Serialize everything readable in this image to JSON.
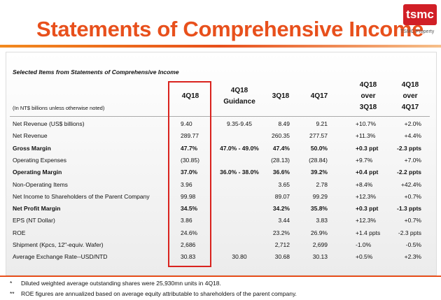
{
  "header": {
    "title": "Statements of Comprehensive Income",
    "logo": "tsmc",
    "logo_caption": "TSMC Property"
  },
  "table": {
    "caption": "Selected Items from Statements of Comprehensive Income",
    "note": "(In NT$ billions unless otherwise noted)",
    "columns": [
      [
        "4Q18"
      ],
      [
        "4Q18",
        "Guidance"
      ],
      [
        "3Q18"
      ],
      [
        "4Q17"
      ],
      [
        "4Q18",
        "over",
        "3Q18"
      ],
      [
        "4Q18",
        "over",
        "4Q17"
      ]
    ],
    "rows": [
      {
        "label": "Net Revenue (US$ billions)",
        "cells": [
          "9.40",
          "9.35-9.45",
          "8.49",
          "9.21",
          "+10.7%",
          "+2.0%"
        ]
      },
      {
        "label": "Net Revenue",
        "cells": [
          "289.77",
          null,
          "260.35",
          "277.57",
          "+11.3%",
          "+4.4%"
        ]
      },
      {
        "label": "Gross Margin",
        "bold": true,
        "cells": [
          "47.7%",
          "47.0% - 49.0%",
          "47.4%",
          "50.0%",
          "+0.3 ppt",
          "-2.3 ppts"
        ]
      },
      {
        "label": "Operating Expenses",
        "cells": [
          "(30.85)",
          null,
          "(28.13)",
          "(28.84)",
          "+9.7%",
          "+7.0%"
        ]
      },
      {
        "label": "Operating Margin",
        "bold": true,
        "cells": [
          "37.0%",
          "36.0% - 38.0%",
          "36.6%",
          "39.2%",
          "+0.4 ppt",
          "-2.2 ppts"
        ]
      },
      {
        "label": "Non-Operating Items",
        "cells": [
          "3.96",
          null,
          "3.65",
          "2.78",
          "+8.4%",
          "+42.4%"
        ]
      },
      {
        "label": "Net Income to Shareholders of the Parent Company",
        "cells": [
          "99.98",
          null,
          "89.07",
          "99.29",
          "+12.3%",
          "+0.7%"
        ]
      },
      {
        "label": "Net Profit Margin",
        "bold": true,
        "cells": [
          "34.5%",
          null,
          "34.2%",
          "35.8%",
          "+0.3 ppt",
          "-1.3 ppts"
        ]
      },
      {
        "label": "EPS (NT Dollar)",
        "cells": [
          "3.86",
          null,
          "3.44",
          "3.83",
          "+12.3%",
          "+0.7%"
        ]
      },
      {
        "label": "ROE",
        "cells": [
          "24.6%",
          null,
          "23.2%",
          "26.9%",
          "+1.4 ppts",
          "-2.3 ppts"
        ]
      },
      {
        "label": "Shipment (Kpcs, 12\"-equiv. Wafer)",
        "cells": [
          "2,686",
          null,
          "2,712",
          "2,699",
          "-1.0%",
          "-0.5%"
        ]
      },
      {
        "label": "Average Exchange Rate--USD/NTD",
        "cells": [
          "30.83",
          "30.80",
          "30.68",
          "30.13",
          "+0.5%",
          "+2.3%"
        ]
      }
    ]
  },
  "footnotes": [
    {
      "marker": "*",
      "text": "Diluted weighted average outstanding shares were 25,930mn units in 4Q18."
    },
    {
      "marker": "**",
      "text": "ROE figures are annualized based on average equity attributable to shareholders of the parent company."
    }
  ]
}
